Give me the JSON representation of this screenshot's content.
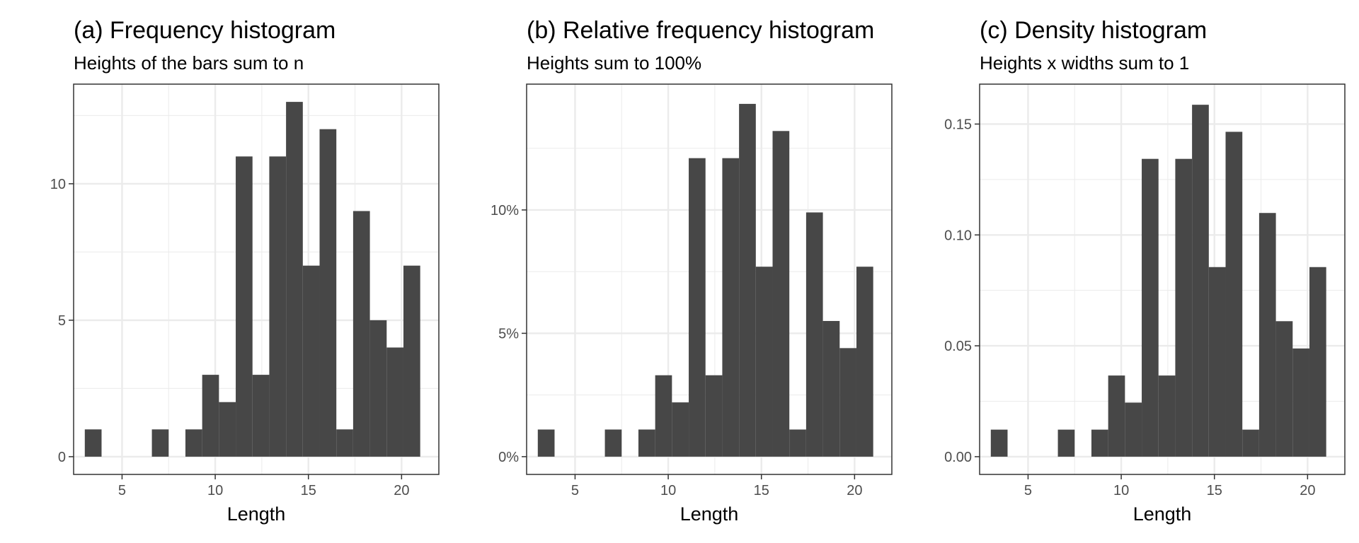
{
  "chart_data": [
    {
      "type": "bar",
      "title": "(a) Frequency histogram",
      "subtitle": "Heights of the bars sum to n",
      "xlabel": "Length",
      "ylabel": "",
      "xlim": [
        2.4,
        22.0
      ],
      "ylim": [
        -0.65,
        13.65
      ],
      "bin_width": 0.9,
      "bins": [
        {
          "x0": 3.0,
          "x1": 3.9,
          "value": 1
        },
        {
          "x0": 6.6,
          "x1": 7.5,
          "value": 1
        },
        {
          "x0": 8.4,
          "x1": 9.3,
          "value": 1
        },
        {
          "x0": 9.3,
          "x1": 10.2,
          "value": 3
        },
        {
          "x0": 10.2,
          "x1": 11.1,
          "value": 2
        },
        {
          "x0": 11.1,
          "x1": 12.0,
          "value": 11
        },
        {
          "x0": 12.0,
          "x1": 12.9,
          "value": 3
        },
        {
          "x0": 12.9,
          "x1": 13.8,
          "value": 11
        },
        {
          "x0": 13.8,
          "x1": 14.7,
          "value": 13
        },
        {
          "x0": 14.7,
          "x1": 15.6,
          "value": 7
        },
        {
          "x0": 15.6,
          "x1": 16.5,
          "value": 12
        },
        {
          "x0": 16.5,
          "x1": 17.4,
          "value": 1
        },
        {
          "x0": 17.4,
          "x1": 18.3,
          "value": 9
        },
        {
          "x0": 18.3,
          "x1": 19.2,
          "value": 5
        },
        {
          "x0": 19.2,
          "x1": 20.1,
          "value": 4
        },
        {
          "x0": 20.1,
          "x1": 21.0,
          "value": 7
        }
      ],
      "x_ticks": [
        {
          "value": 5,
          "label": "5"
        },
        {
          "value": 10,
          "label": "10"
        },
        {
          "value": 15,
          "label": "15"
        },
        {
          "value": 20,
          "label": "20"
        }
      ],
      "x_minor": [
        7.5,
        12.5,
        17.5
      ],
      "y_ticks": [
        {
          "value": 0,
          "label": "0"
        },
        {
          "value": 5,
          "label": "5"
        },
        {
          "value": 10,
          "label": "10"
        }
      ],
      "y_minor": [
        2.5,
        7.5,
        12.5
      ],
      "grid": true,
      "legend": "none",
      "bar_color": "#474747",
      "grid_color": "#ebebeb"
    },
    {
      "type": "bar",
      "title": "(b) Relative frequency histogram",
      "subtitle": "Heights sum to 100%",
      "xlabel": "Length",
      "ylabel": "",
      "xlim": [
        2.4,
        22.0
      ],
      "ylim": [
        -0.72,
        15.1
      ],
      "bin_width": 0.9,
      "bins": [
        {
          "x0": 3.0,
          "x1": 3.9,
          "value": 1.1
        },
        {
          "x0": 6.6,
          "x1": 7.5,
          "value": 1.1
        },
        {
          "x0": 8.4,
          "x1": 9.3,
          "value": 1.1
        },
        {
          "x0": 9.3,
          "x1": 10.2,
          "value": 3.3
        },
        {
          "x0": 10.2,
          "x1": 11.1,
          "value": 2.2
        },
        {
          "x0": 11.1,
          "x1": 12.0,
          "value": 12.1
        },
        {
          "x0": 12.0,
          "x1": 12.9,
          "value": 3.3
        },
        {
          "x0": 12.9,
          "x1": 13.8,
          "value": 12.1
        },
        {
          "x0": 13.8,
          "x1": 14.7,
          "value": 14.3
        },
        {
          "x0": 14.7,
          "x1": 15.6,
          "value": 7.7
        },
        {
          "x0": 15.6,
          "x1": 16.5,
          "value": 13.2
        },
        {
          "x0": 16.5,
          "x1": 17.4,
          "value": 1.1
        },
        {
          "x0": 17.4,
          "x1": 18.3,
          "value": 9.9
        },
        {
          "x0": 18.3,
          "x1": 19.2,
          "value": 5.5
        },
        {
          "x0": 19.2,
          "x1": 20.1,
          "value": 4.4
        },
        {
          "x0": 20.1,
          "x1": 21.0,
          "value": 7.7
        }
      ],
      "x_ticks": [
        {
          "value": 5,
          "label": "5"
        },
        {
          "value": 10,
          "label": "10"
        },
        {
          "value": 15,
          "label": "15"
        },
        {
          "value": 20,
          "label": "20"
        }
      ],
      "x_minor": [
        7.5,
        12.5,
        17.5
      ],
      "y_ticks": [
        {
          "value": 0,
          "label": "0%"
        },
        {
          "value": 5,
          "label": "5%"
        },
        {
          "value": 10,
          "label": "10%"
        }
      ],
      "y_minor": [
        2.5,
        7.5,
        12.5
      ],
      "grid": true,
      "legend": "none",
      "bar_color": "#474747",
      "grid_color": "#ebebeb"
    },
    {
      "type": "bar",
      "title": "(c) Density histogram",
      "subtitle": "Heights x widths sum to 1",
      "xlabel": "Length",
      "ylabel": "",
      "xlim": [
        2.4,
        22.0
      ],
      "ylim": [
        -0.008,
        0.168
      ],
      "bin_width": 0.9,
      "bins": [
        {
          "x0": 3.0,
          "x1": 3.9,
          "value": 0.0122
        },
        {
          "x0": 6.6,
          "x1": 7.5,
          "value": 0.0122
        },
        {
          "x0": 8.4,
          "x1": 9.3,
          "value": 0.0122
        },
        {
          "x0": 9.3,
          "x1": 10.2,
          "value": 0.0366
        },
        {
          "x0": 10.2,
          "x1": 11.1,
          "value": 0.0244
        },
        {
          "x0": 11.1,
          "x1": 12.0,
          "value": 0.1343
        },
        {
          "x0": 12.0,
          "x1": 12.9,
          "value": 0.0366
        },
        {
          "x0": 12.9,
          "x1": 13.8,
          "value": 0.1343
        },
        {
          "x0": 13.8,
          "x1": 14.7,
          "value": 0.1587
        },
        {
          "x0": 14.7,
          "x1": 15.6,
          "value": 0.0855
        },
        {
          "x0": 15.6,
          "x1": 16.5,
          "value": 0.1465
        },
        {
          "x0": 16.5,
          "x1": 17.4,
          "value": 0.0122
        },
        {
          "x0": 17.4,
          "x1": 18.3,
          "value": 0.1099
        },
        {
          "x0": 18.3,
          "x1": 19.2,
          "value": 0.0611
        },
        {
          "x0": 19.2,
          "x1": 20.1,
          "value": 0.0488
        },
        {
          "x0": 20.1,
          "x1": 21.0,
          "value": 0.0855
        }
      ],
      "x_ticks": [
        {
          "value": 5,
          "label": "5"
        },
        {
          "value": 10,
          "label": "10"
        },
        {
          "value": 15,
          "label": "15"
        },
        {
          "value": 20,
          "label": "20"
        }
      ],
      "x_minor": [
        7.5,
        12.5,
        17.5
      ],
      "y_ticks": [
        {
          "value": 0,
          "label": "0.00"
        },
        {
          "value": 0.05,
          "label": "0.05"
        },
        {
          "value": 0.1,
          "label": "0.10"
        },
        {
          "value": 0.15,
          "label": "0.15"
        }
      ],
      "y_minor": [
        0.025,
        0.075,
        0.125
      ],
      "grid": true,
      "legend": "none",
      "bar_color": "#474747",
      "grid_color": "#ebebeb"
    }
  ]
}
